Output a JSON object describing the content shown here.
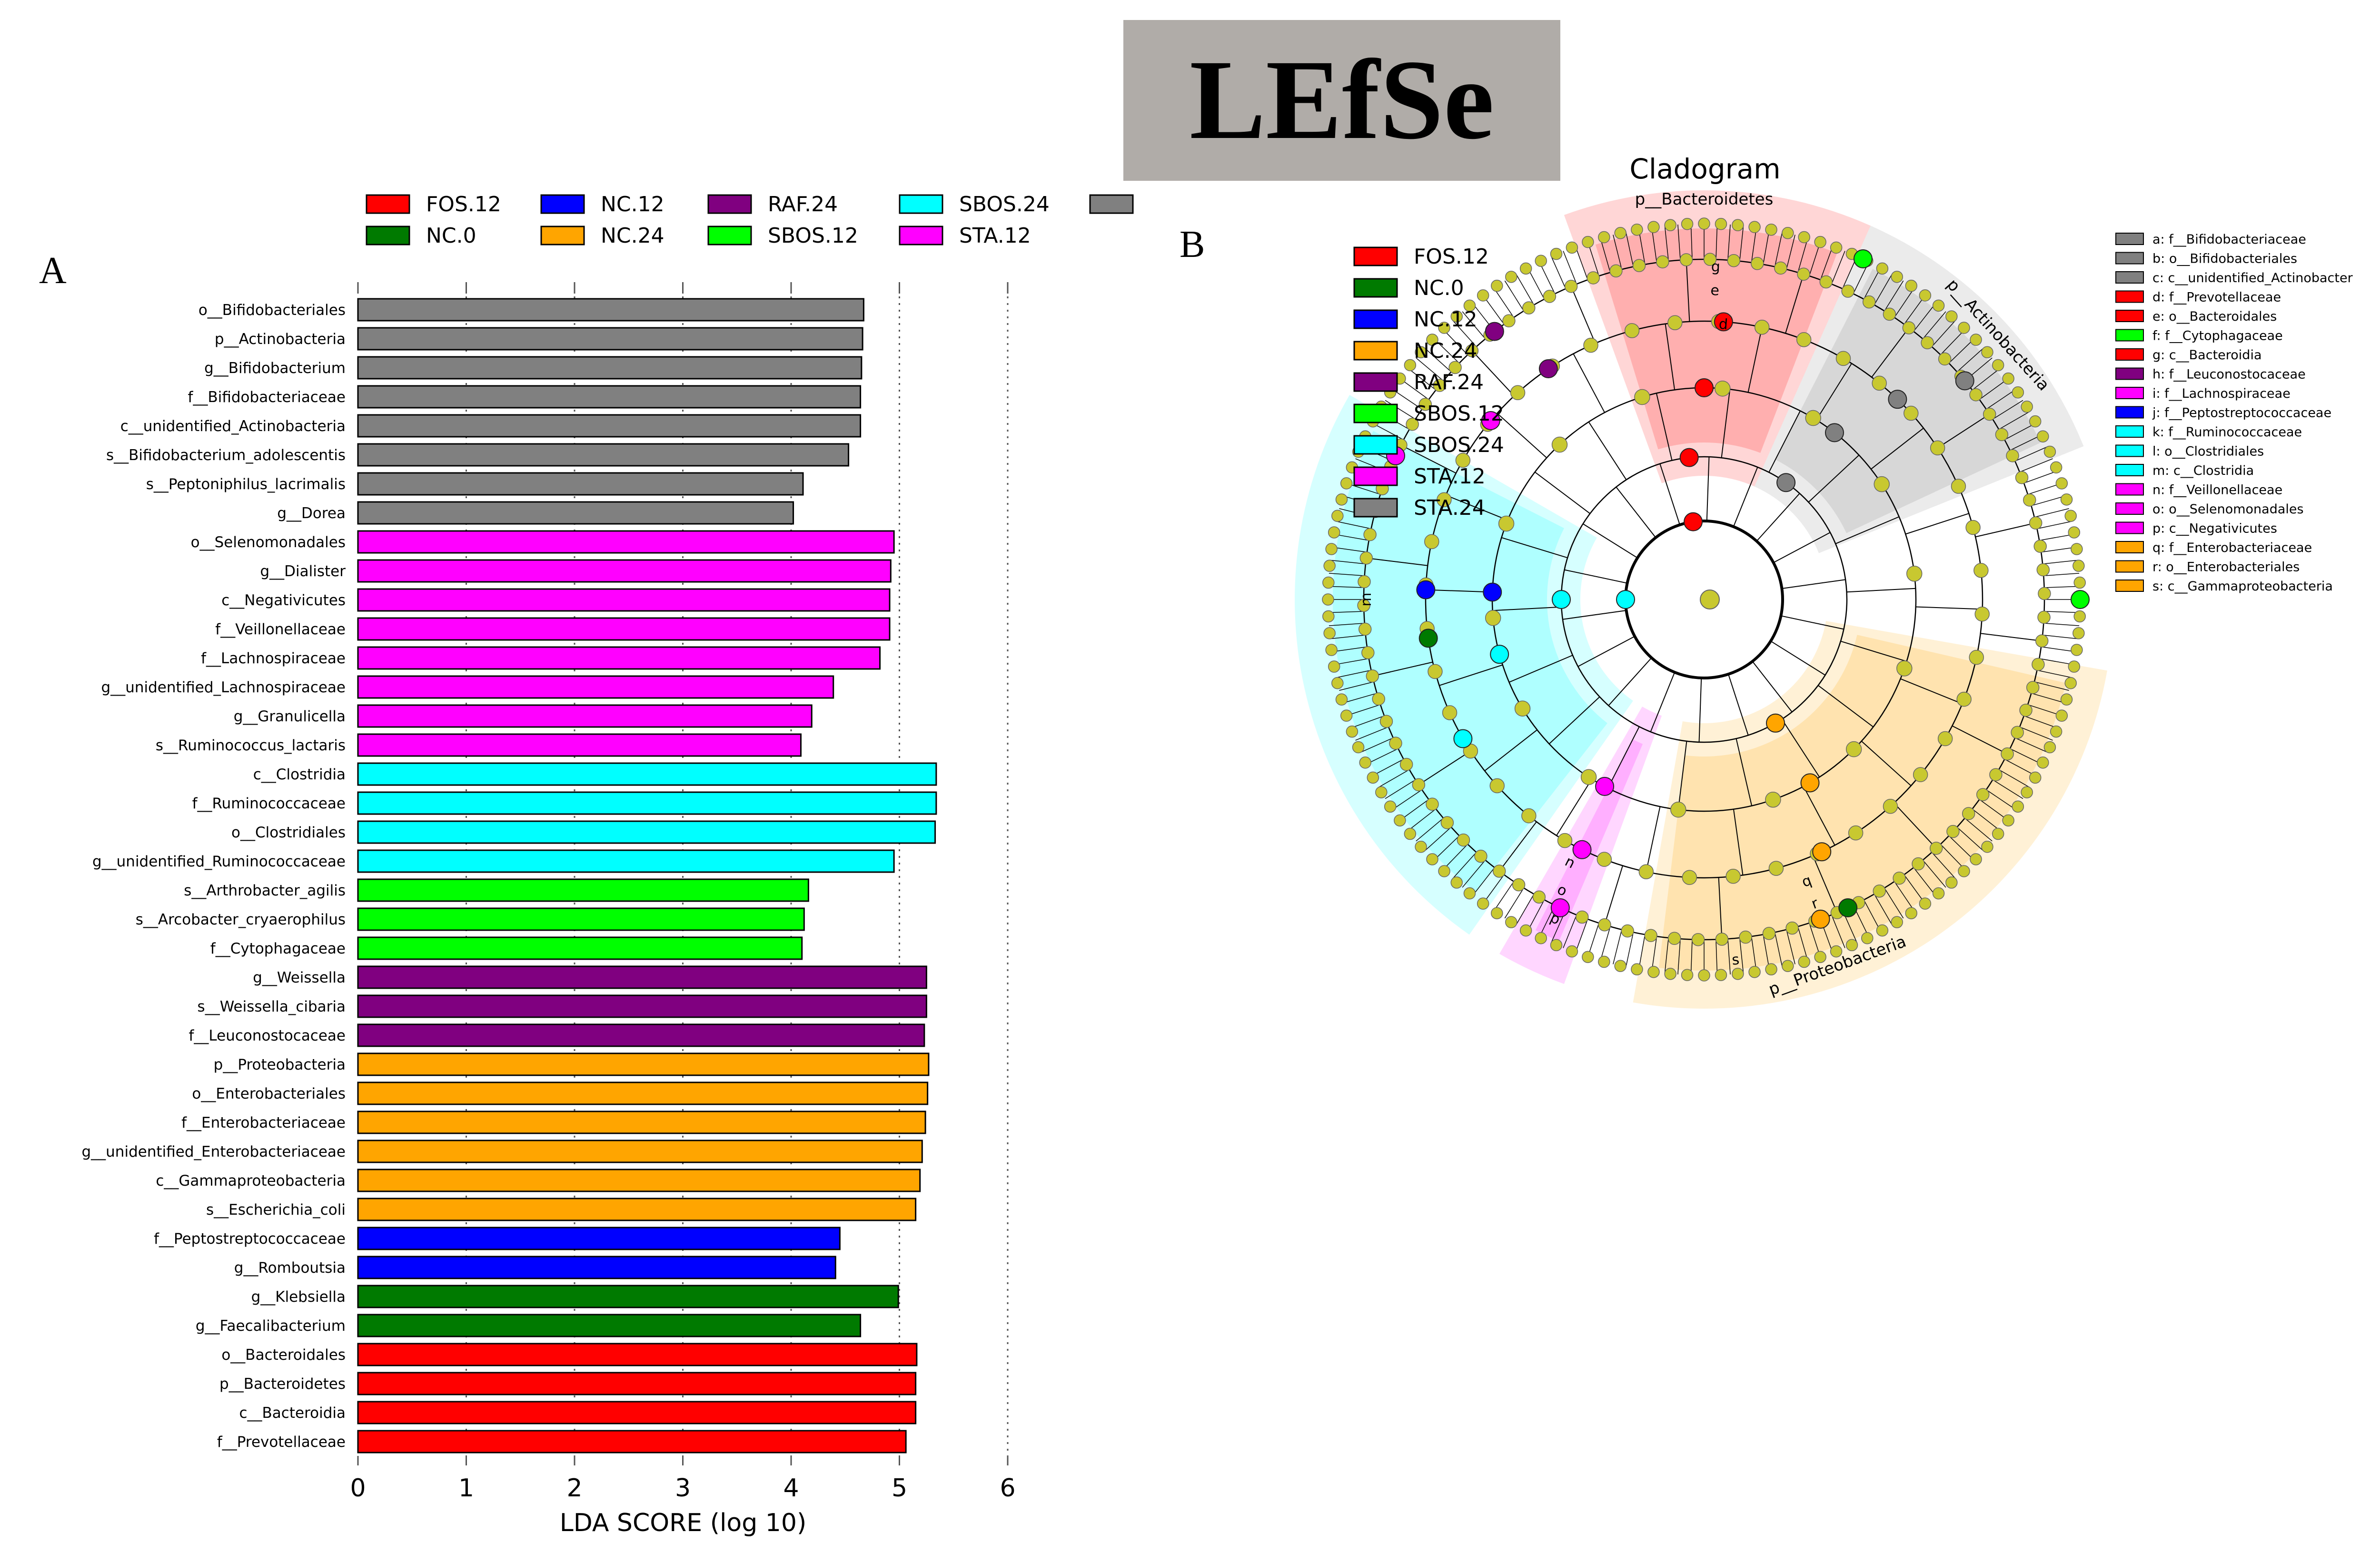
{
  "figure": {
    "title": "LEfSe",
    "panel_a_label": "A",
    "panel_b_label": "B"
  },
  "colors": {
    "FOS.12": "#ff0000",
    "NC.0": "#007a00",
    "NC.12": "#0000ff",
    "NC.24": "#ffa500",
    "RAF.24": "#800080",
    "SBOS.12": "#00ff00",
    "SBOS.24": "#00ffff",
    "STA.12": "#ff00ff",
    "STA.24": "#808080",
    "title_box": "#b0aca8",
    "node": "#c8c830"
  },
  "chart_data": [
    {
      "type": "bar",
      "orientation": "horizontal",
      "panel": "A",
      "xlabel": "LDA SCORE (log 10)",
      "xlim": [
        0,
        6
      ],
      "xticks": [
        "0",
        "1",
        "2",
        "3",
        "4",
        "5",
        "6"
      ],
      "legend": [
        {
          "name": "FOS.12",
          "color": "#ff0000"
        },
        {
          "name": "NC.12",
          "color": "#0000ff"
        },
        {
          "name": "RAF.24",
          "color": "#800080"
        },
        {
          "name": "SBOS.24",
          "color": "#00ffff"
        },
        {
          "name": "",
          "color": "#808080"
        },
        {
          "name": "NC.0",
          "color": "#007a00"
        },
        {
          "name": "NC.24",
          "color": "#ffa500"
        },
        {
          "name": "SBOS.12",
          "color": "#00ff00"
        },
        {
          "name": "STA.12",
          "color": "#ff00ff"
        }
      ],
      "bars": [
        {
          "label": "o__Bifidobacteriales",
          "value": 4.67,
          "group": "STA.24"
        },
        {
          "label": "p__Actinobacteria",
          "value": 4.66,
          "group": "STA.24"
        },
        {
          "label": "g__Bifidobacterium",
          "value": 4.65,
          "group": "STA.24"
        },
        {
          "label": "f__Bifidobacteriaceae",
          "value": 4.64,
          "group": "STA.24"
        },
        {
          "label": "c__unidentified_Actinobacteria",
          "value": 4.64,
          "group": "STA.24"
        },
        {
          "label": "s__Bifidobacterium_adolescentis",
          "value": 4.53,
          "group": "STA.24"
        },
        {
          "label": "s__Peptoniphilus_lacrimalis",
          "value": 4.11,
          "group": "STA.24"
        },
        {
          "label": "g__Dorea",
          "value": 4.02,
          "group": "STA.24"
        },
        {
          "label": "o__Selenomonadales",
          "value": 4.95,
          "group": "STA.12"
        },
        {
          "label": "g__Dialister",
          "value": 4.92,
          "group": "STA.12"
        },
        {
          "label": "c__Negativicutes",
          "value": 4.91,
          "group": "STA.12"
        },
        {
          "label": "f__Veillonellaceae",
          "value": 4.91,
          "group": "STA.12"
        },
        {
          "label": "f__Lachnospiraceae",
          "value": 4.82,
          "group": "STA.12"
        },
        {
          "label": "g__unidentified_Lachnospiraceae",
          "value": 4.39,
          "group": "STA.12"
        },
        {
          "label": "g__Granulicella",
          "value": 4.19,
          "group": "STA.12"
        },
        {
          "label": "s__Ruminococcus_lactaris",
          "value": 4.09,
          "group": "STA.12"
        },
        {
          "label": "c__Clostridia",
          "value": 5.34,
          "group": "SBOS.24"
        },
        {
          "label": "f__Ruminococcaceae",
          "value": 5.34,
          "group": "SBOS.24"
        },
        {
          "label": "o__Clostridiales",
          "value": 5.33,
          "group": "SBOS.24"
        },
        {
          "label": "g__unidentified_Ruminococcaceae",
          "value": 4.95,
          "group": "SBOS.24"
        },
        {
          "label": "s__Arthrobacter_agilis",
          "value": 4.16,
          "group": "SBOS.12"
        },
        {
          "label": "s__Arcobacter_cryaerophilus",
          "value": 4.12,
          "group": "SBOS.12"
        },
        {
          "label": "f__Cytophagaceae",
          "value": 4.1,
          "group": "SBOS.12"
        },
        {
          "label": "g__Weissella",
          "value": 5.25,
          "group": "RAF.24"
        },
        {
          "label": "s__Weissella_cibaria",
          "value": 5.25,
          "group": "RAF.24"
        },
        {
          "label": "f__Leuconostocaceae",
          "value": 5.23,
          "group": "RAF.24"
        },
        {
          "label": "p__Proteobacteria",
          "value": 5.27,
          "group": "NC.24"
        },
        {
          "label": "o__Enterobacteriales",
          "value": 5.26,
          "group": "NC.24"
        },
        {
          "label": "f__Enterobacteriaceae",
          "value": 5.24,
          "group": "NC.24"
        },
        {
          "label": "g__unidentified_Enterobacteriaceae",
          "value": 5.21,
          "group": "NC.24"
        },
        {
          "label": "c__Gammaproteobacteria",
          "value": 5.19,
          "group": "NC.24"
        },
        {
          "label": "s__Escherichia_coli",
          "value": 5.15,
          "group": "NC.24"
        },
        {
          "label": "f__Peptostreptococcaceae",
          "value": 4.45,
          "group": "NC.12"
        },
        {
          "label": "g__Romboutsia",
          "value": 4.41,
          "group": "NC.12"
        },
        {
          "label": "g__Klebsiella",
          "value": 4.99,
          "group": "NC.0"
        },
        {
          "label": "g__Faecalibacterium",
          "value": 4.64,
          "group": "NC.0"
        },
        {
          "label": "o__Bacteroidales",
          "value": 5.16,
          "group": "FOS.12"
        },
        {
          "label": "p__Bacteroidetes",
          "value": 5.15,
          "group": "FOS.12"
        },
        {
          "label": "c__Bacteroidia",
          "value": 5.15,
          "group": "FOS.12"
        },
        {
          "label": "f__Prevotellaceae",
          "value": 5.06,
          "group": "FOS.12"
        }
      ]
    },
    {
      "type": "cladogram",
      "panel": "B",
      "title": "Cladogram",
      "legend": [
        {
          "name": "FOS.12",
          "color": "#ff0000"
        },
        {
          "name": "NC.0",
          "color": "#007a00"
        },
        {
          "name": "NC.12",
          "color": "#0000ff"
        },
        {
          "name": "NC.24",
          "color": "#ffa500"
        },
        {
          "name": "RAF.24",
          "color": "#800080"
        },
        {
          "name": "SBOS.12",
          "color": "#00ff00"
        },
        {
          "name": "SBOS.24",
          "color": "#00ffff"
        },
        {
          "name": "STA.12",
          "color": "#ff00ff"
        },
        {
          "name": "STA.24",
          "color": "#808080"
        }
      ],
      "key": [
        {
          "text": "a: f__Bifidobacteriaceae",
          "color": "#808080"
        },
        {
          "text": "b: o__Bifidobacteriales",
          "color": "#808080"
        },
        {
          "text": "c: c__unidentified_Actinobacter",
          "color": "#808080"
        },
        {
          "text": "d: f__Prevotellaceae",
          "color": "#ff0000"
        },
        {
          "text": "e: o__Bacteroidales",
          "color": "#ff0000"
        },
        {
          "text": "f: f__Cytophagaceae",
          "color": "#00ff00"
        },
        {
          "text": "g: c__Bacteroidia",
          "color": "#ff0000"
        },
        {
          "text": "h: f__Leuconostocaceae",
          "color": "#800080"
        },
        {
          "text": "i: f__Lachnospiraceae",
          "color": "#ff00ff"
        },
        {
          "text": "j: f__Peptostreptococcaceae",
          "color": "#0000ff"
        },
        {
          "text": "k: f__Ruminococcaceae",
          "color": "#00ffff"
        },
        {
          "text": "l: o__Clostridiales",
          "color": "#00ffff"
        },
        {
          "text": "m: c__Clostridia",
          "color": "#00ffff"
        },
        {
          "text": "n: f__Veillonellaceae",
          "color": "#ff00ff"
        },
        {
          "text": "o: o__Selenomonadales",
          "color": "#ff00ff"
        },
        {
          "text": "p: c__Negativicutes",
          "color": "#ff00ff"
        },
        {
          "text": "q: f__Enterobacteriaceae",
          "color": "#ffa500"
        },
        {
          "text": "r: o__Enterobacteriales",
          "color": "#ffa500"
        },
        {
          "text": "s: c__Gammaproteobacteria",
          "color": "#ffa500"
        }
      ],
      "sector_labels": [
        {
          "text": "p__Bacteroidetes",
          "group": "FOS.12"
        },
        {
          "text": "p__Actinobacteria",
          "group": "STA.24"
        },
        {
          "text": "p__Proteobacteria",
          "group": "NC.24"
        },
        {
          "text": "g",
          "group": "FOS.12"
        },
        {
          "text": "e",
          "group": "FOS.12"
        },
        {
          "text": "d",
          "group": "FOS.12"
        },
        {
          "text": "s",
          "group": "NC.24"
        },
        {
          "text": "r",
          "group": "NC.24"
        },
        {
          "text": "q",
          "group": "NC.24"
        },
        {
          "text": "p",
          "group": "STA.12"
        },
        {
          "text": "o",
          "group": "STA.12"
        },
        {
          "text": "n",
          "group": "STA.12"
        },
        {
          "text": "m",
          "group": "SBOS.24"
        }
      ],
      "sectors": [
        {
          "group": "FOS.12",
          "start_deg": -20,
          "end_deg": 24
        },
        {
          "group": "STA.24",
          "start_deg": 24,
          "end_deg": 68
        },
        {
          "group": "NC.24",
          "start_deg": 100,
          "end_deg": 190
        },
        {
          "group": "STA.12",
          "start_deg": 200,
          "end_deg": 210
        },
        {
          "group": "SBOS.24",
          "start_deg": 215,
          "end_deg": 300
        }
      ]
    }
  ]
}
